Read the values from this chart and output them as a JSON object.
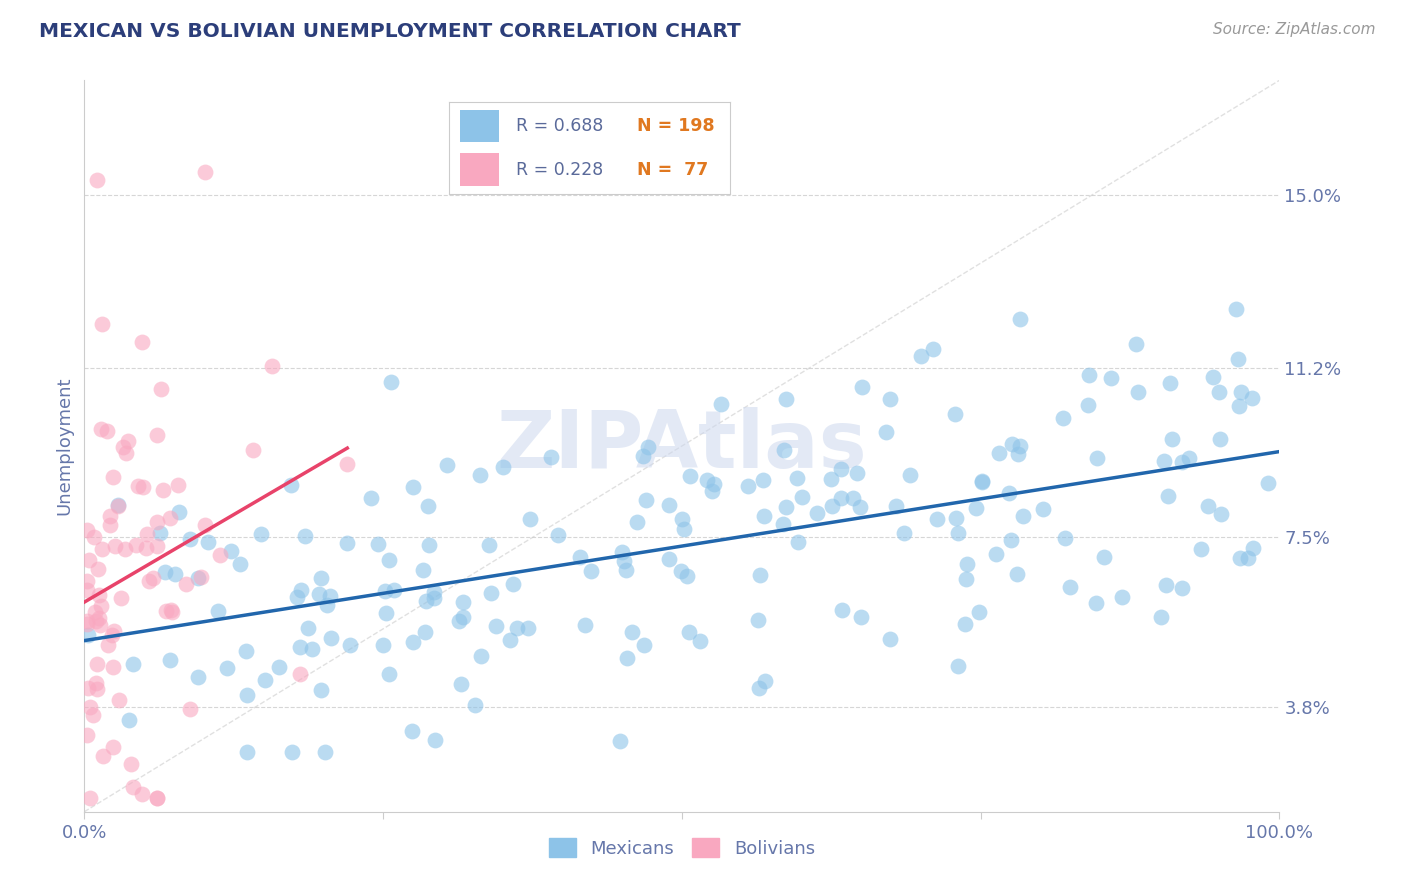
{
  "title": "MEXICAN VS BOLIVIAN UNEMPLOYMENT CORRELATION CHART",
  "source_text": "Source: ZipAtlas.com",
  "ylabel": "Unemployment",
  "xlabel": "",
  "xlim": [
    0.0,
    1.0
  ],
  "ylim": [
    0.015,
    0.175
  ],
  "yticks": [
    0.038,
    0.075,
    0.112,
    0.15
  ],
  "ytick_labels": [
    "3.8%",
    "7.5%",
    "11.2%",
    "15.0%"
  ],
  "xticks": [
    0.0,
    0.25,
    0.5,
    0.75,
    1.0
  ],
  "xtick_labels_show": [
    "0.0%",
    "",
    "",
    "",
    "100.0%"
  ],
  "mexican_R": 0.688,
  "mexican_N": 198,
  "bolivian_R": 0.228,
  "bolivian_N": 77,
  "mexican_color": "#8dc3e8",
  "bolivian_color": "#f9a8c0",
  "mexican_line_color": "#2166ac",
  "bolivian_line_color": "#e8436a",
  "diag_line_color": "#cccccc",
  "background_color": "#ffffff",
  "grid_color": "#cccccc",
  "title_color": "#2c3e7a",
  "axis_label_color": "#6677aa",
  "tick_color": "#6677aa",
  "watermark_color": "#cdd8ee",
  "watermark_text": "ZIPAtlas",
  "legend_r1": "R = 0.688",
  "legend_n1": "N = 198",
  "legend_r2": "R = 0.228",
  "legend_n2": "N =  77",
  "legend_color_r": "#5a6a9a",
  "legend_color_n": "#e07820",
  "seed": 7
}
